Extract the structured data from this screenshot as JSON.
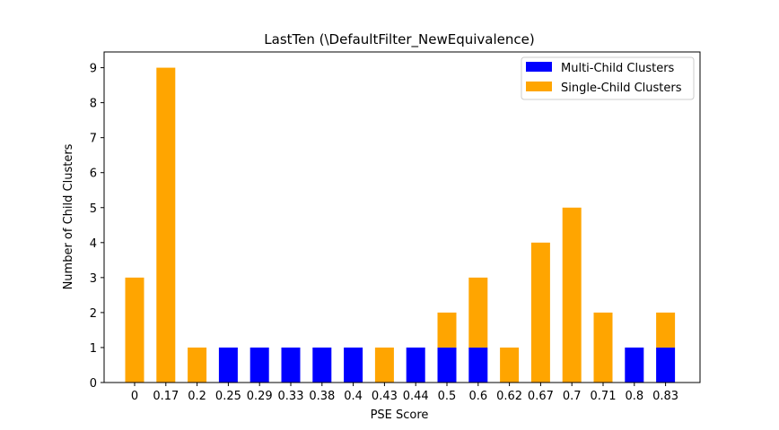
{
  "chart_data": {
    "type": "bar",
    "stacked": true,
    "title": "LastTen (\\DefaultFilter_NewEquivalence)",
    "xlabel": "PSE Score",
    "ylabel": "Number of Child Clusters",
    "ylim": [
      0,
      9.45
    ],
    "yticks": [
      0,
      1,
      2,
      3,
      4,
      5,
      6,
      7,
      8,
      9
    ],
    "categories": [
      "0",
      "0.17",
      "0.2",
      "0.25",
      "0.29",
      "0.33",
      "0.38",
      "0.4",
      "0.43",
      "0.44",
      "0.5",
      "0.6",
      "0.62",
      "0.67",
      "0.7",
      "0.71",
      "0.8",
      "0.83"
    ],
    "series": [
      {
        "name": "Multi-Child Clusters",
        "color": "#0000ff",
        "values": [
          0,
          0,
          0,
          1,
          1,
          1,
          1,
          1,
          0,
          1,
          1,
          1,
          0,
          0,
          0,
          0,
          1,
          1
        ]
      },
      {
        "name": "Single-Child Clusters",
        "color": "#ffa500",
        "values": [
          3,
          9,
          1,
          0,
          0,
          0,
          0,
          0,
          1,
          0,
          1,
          2,
          1,
          4,
          5,
          2,
          0,
          1
        ]
      }
    ],
    "grid": false,
    "legend_position": "top-right"
  }
}
